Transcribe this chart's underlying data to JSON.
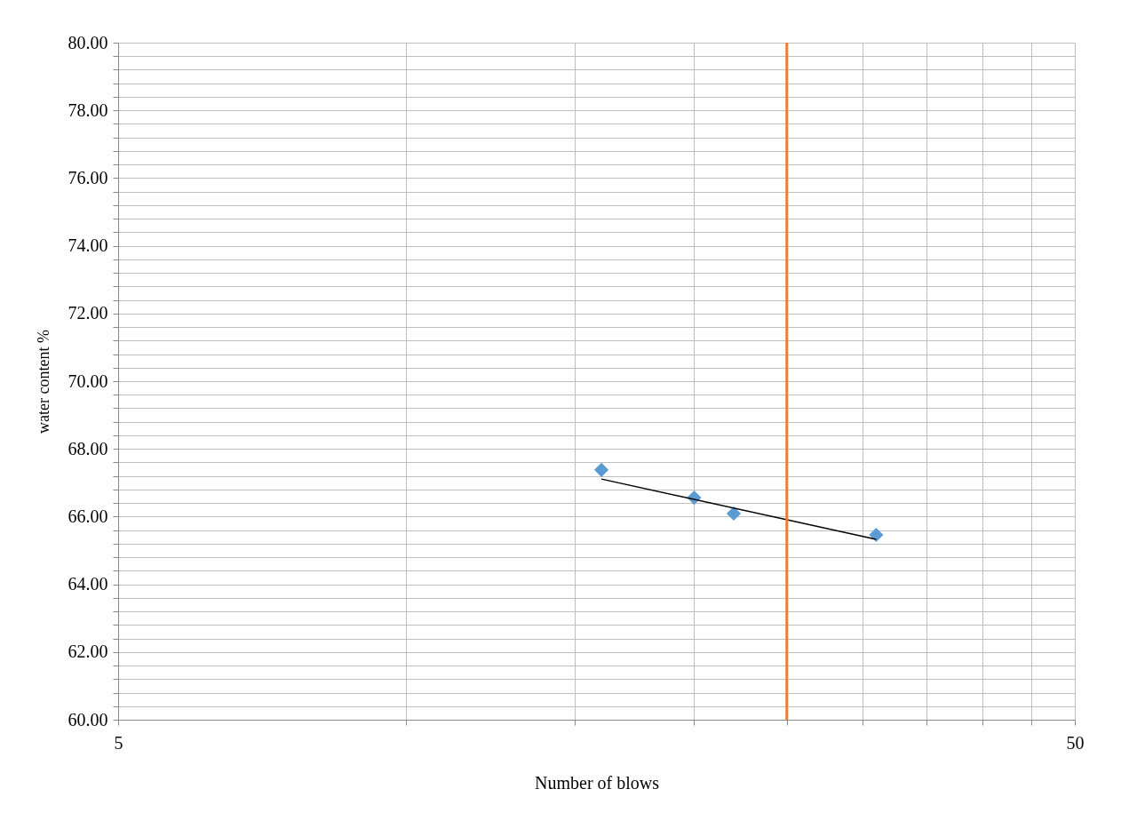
{
  "chart_data": {
    "type": "scatter",
    "xlabel": "Number of blows",
    "ylabel": "water content  %",
    "log": "x",
    "grid": true,
    "marker": "diamond",
    "xlim": [
      5,
      50
    ],
    "ylim": [
      60,
      80
    ],
    "xticks": [
      5,
      {
        "value": 10,
        "label": null
      },
      {
        "value": 15,
        "label": null
      },
      {
        "value": 20,
        "label": null
      },
      {
        "value": 25,
        "label": null
      },
      {
        "value": 30,
        "label": null
      },
      {
        "value": 35,
        "label": null
      },
      {
        "value": 40,
        "label": null
      },
      {
        "value": 45,
        "label": null
      },
      50
    ],
    "yticks": [
      {
        "value": 60,
        "label": "60.00"
      },
      {
        "value": 60.4,
        "label": null
      },
      {
        "value": 60.8,
        "label": null
      },
      {
        "value": 61.2,
        "label": null
      },
      {
        "value": 61.6,
        "label": null
      },
      {
        "value": 62,
        "label": "62.00"
      },
      {
        "value": 62.4,
        "label": null
      },
      {
        "value": 62.8,
        "label": null
      },
      {
        "value": 63.2,
        "label": null
      },
      {
        "value": 63.6,
        "label": null
      },
      {
        "value": 64,
        "label": "64.00"
      },
      {
        "value": 64.4,
        "label": null
      },
      {
        "value": 64.8,
        "label": null
      },
      {
        "value": 65.2,
        "label": null
      },
      {
        "value": 65.6,
        "label": null
      },
      {
        "value": 66,
        "label": "66.00"
      },
      {
        "value": 66.4,
        "label": null
      },
      {
        "value": 66.8,
        "label": null
      },
      {
        "value": 67.2,
        "label": null
      },
      {
        "value": 67.6,
        "label": null
      },
      {
        "value": 68,
        "label": "68.00"
      },
      {
        "value": 68.4,
        "label": null
      },
      {
        "value": 68.8,
        "label": null
      },
      {
        "value": 69.2,
        "label": null
      },
      {
        "value": 69.6,
        "label": null
      },
      {
        "value": 70,
        "label": "70.00"
      },
      {
        "value": 70.4,
        "label": null
      },
      {
        "value": 70.8,
        "label": null
      },
      {
        "value": 71.2,
        "label": null
      },
      {
        "value": 71.6,
        "label": null
      },
      {
        "value": 72,
        "label": "72.00"
      },
      {
        "value": 72.4,
        "label": null
      },
      {
        "value": 72.8,
        "label": null
      },
      {
        "value": 73.2,
        "label": null
      },
      {
        "value": 73.6,
        "label": null
      },
      {
        "value": 74,
        "label": "74.00"
      },
      {
        "value": 74.4,
        "label": null
      },
      {
        "value": 74.8,
        "label": null
      },
      {
        "value": 75.2,
        "label": null
      },
      {
        "value": 75.6,
        "label": null
      },
      {
        "value": 76,
        "label": "76.00"
      },
      {
        "value": 76.4,
        "label": null
      },
      {
        "value": 76.8,
        "label": null
      },
      {
        "value": 77.2,
        "label": null
      },
      {
        "value": 77.6,
        "label": null
      },
      {
        "value": 78,
        "label": "78.00"
      },
      {
        "value": 78.4,
        "label": null
      },
      {
        "value": 78.8,
        "label": null
      },
      {
        "value": 79.2,
        "label": null
      },
      {
        "value": 79.6,
        "label": null
      },
      {
        "value": 80,
        "label": "80.00"
      }
    ],
    "series": [
      {
        "color": "#5b9bd5",
        "x": [
          16,
          20,
          22,
          31
        ],
        "values": [
          67.38,
          66.56,
          66.09,
          65.46
        ]
      },
      {
        "type": "line",
        "color": "#000000",
        "x": [
          16,
          31
        ],
        "values": [
          67.11,
          65.33
        ],
        "marker": "none",
        "line_style": "solid"
      }
    ],
    "ref_lines": [
      {
        "axis": "x",
        "value": 25,
        "label": null,
        "color": "#ed7d31"
      }
    ]
  }
}
